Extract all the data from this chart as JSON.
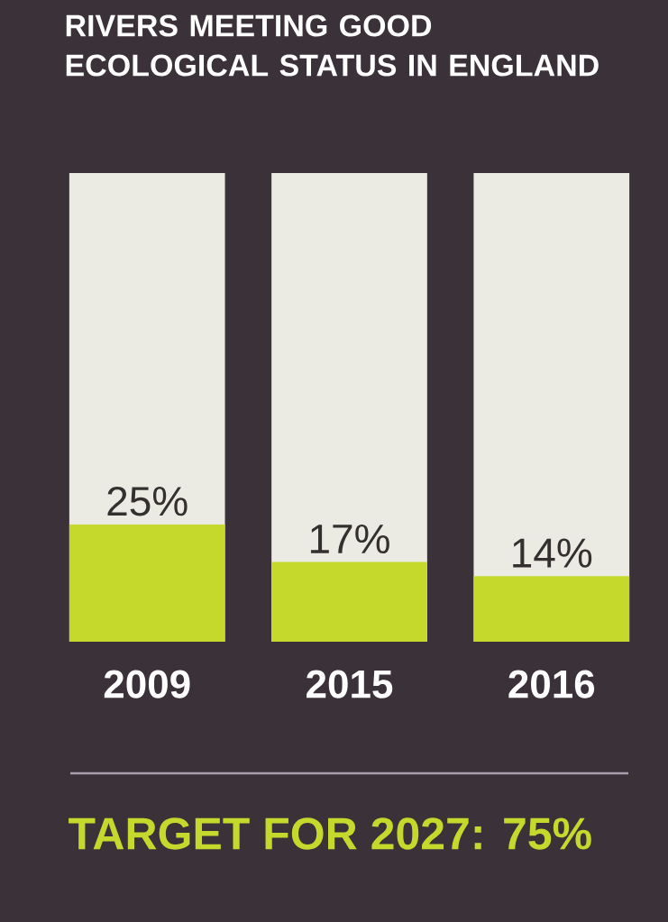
{
  "chart_data": {
    "type": "bar",
    "title": "RIVERS MEETING GOOD ECOLOGICAL STATUS IN ENGLAND",
    "categories": [
      "2009",
      "2015",
      "2016"
    ],
    "values": [
      25,
      17,
      14
    ],
    "value_labels": [
      "25%",
      "17%",
      "14%"
    ],
    "color": "#c5d92d",
    "ylim": [
      0,
      100
    ],
    "annotations": [
      "TARGET FOR 2027: 75%"
    ]
  }
}
